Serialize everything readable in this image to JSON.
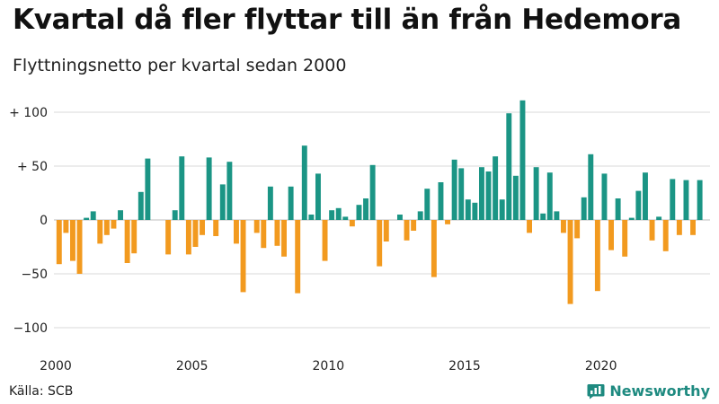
{
  "header": {
    "title": "Kvartal då fler flyttar till än från Hedemora",
    "subtitle": "Flyttningsnetto per kvartal sedan 2000"
  },
  "footer": {
    "source": "Källa: SCB",
    "brand": "Newsworthy"
  },
  "colors": {
    "positive": "#1b9585",
    "negative": "#f29a1f",
    "brand": "#1e8a80",
    "grid": "#d9d9d9"
  },
  "chart_data": {
    "type": "bar",
    "title": "Kvartal då fler flyttar till än från Hedemora",
    "subtitle": "Flyttningsnetto per kvartal sedan 2000",
    "xlabel": "",
    "ylabel": "",
    "x_ticks": [
      "2000",
      "2005",
      "2010",
      "2015",
      "2020"
    ],
    "y_ticks": [
      {
        "value": 100,
        "label": "+ 100"
      },
      {
        "value": 50,
        "label": "+  50"
      },
      {
        "value": 0,
        "label": "0"
      },
      {
        "value": -50,
        "label": "−50"
      },
      {
        "value": -100,
        "label": "−100"
      }
    ],
    "ylim": [
      -110,
      115
    ],
    "xlim": [
      "2000Q1",
      "2024Q1"
    ],
    "grid": true,
    "legend": "none",
    "categories": [
      "2000Q1",
      "2000Q2",
      "2000Q3",
      "2000Q4",
      "2001Q1",
      "2001Q2",
      "2001Q3",
      "2001Q4",
      "2002Q1",
      "2002Q2",
      "2002Q3",
      "2002Q4",
      "2003Q1",
      "2003Q2",
      "2003Q3",
      "2003Q4",
      "2004Q1",
      "2004Q2",
      "2004Q3",
      "2004Q4",
      "2005Q1",
      "2005Q2",
      "2005Q3",
      "2005Q4",
      "2006Q1",
      "2006Q2",
      "2006Q3",
      "2006Q4",
      "2007Q1",
      "2007Q2",
      "2007Q3",
      "2007Q4",
      "2008Q1",
      "2008Q2",
      "2008Q3",
      "2008Q4",
      "2009Q1",
      "2009Q2",
      "2009Q3",
      "2009Q4",
      "2010Q1",
      "2010Q2",
      "2010Q3",
      "2010Q4",
      "2011Q1",
      "2011Q2",
      "2011Q3",
      "2011Q4",
      "2012Q1",
      "2012Q2",
      "2012Q3",
      "2012Q4",
      "2013Q1",
      "2013Q2",
      "2013Q3",
      "2013Q4",
      "2014Q1",
      "2014Q2",
      "2014Q3",
      "2014Q4",
      "2015Q1",
      "2015Q2",
      "2015Q3",
      "2015Q4",
      "2016Q1",
      "2016Q2",
      "2016Q3",
      "2016Q4",
      "2017Q1",
      "2017Q2",
      "2017Q3",
      "2017Q4",
      "2018Q1",
      "2018Q2",
      "2018Q3",
      "2018Q4",
      "2019Q1",
      "2019Q2",
      "2019Q3",
      "2019Q4",
      "2020Q1",
      "2020Q2",
      "2020Q3",
      "2020Q4",
      "2021Q1",
      "2021Q2",
      "2021Q3",
      "2021Q4",
      "2022Q1",
      "2022Q2",
      "2022Q3",
      "2022Q4",
      "2023Q1",
      "2023Q2",
      "2023Q3",
      "2023Q4"
    ],
    "values": [
      -41,
      -12,
      -38,
      -50,
      2,
      8,
      -22,
      -14,
      -8,
      9,
      -40,
      -31,
      26,
      57,
      0,
      0,
      -32,
      9,
      59,
      -32,
      -25,
      -14,
      58,
      -15,
      33,
      54,
      -22,
      -67,
      0,
      -12,
      -26,
      31,
      -24,
      -34,
      31,
      -68,
      69,
      5,
      43,
      -38,
      9,
      11,
      3,
      -6,
      14,
      20,
      51,
      -43,
      -20,
      0,
      5,
      -19,
      -10,
      8,
      29,
      -53,
      35,
      -4,
      56,
      48,
      19,
      16,
      49,
      45,
      59,
      19,
      99,
      41,
      111,
      -12,
      49,
      6,
      44,
      8,
      -12,
      -78,
      -17,
      21,
      61,
      -66,
      43,
      -28,
      20,
      -34,
      2,
      27,
      44,
      -19,
      3,
      -29,
      38,
      -14,
      37,
      -14,
      37,
      0
    ]
  }
}
